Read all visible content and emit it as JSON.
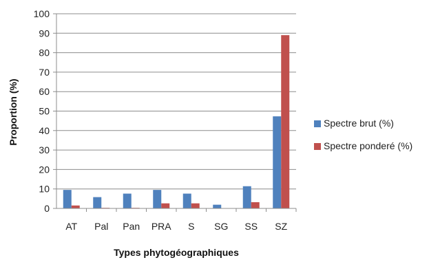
{
  "chart_data": {
    "type": "bar",
    "categories": [
      "AT",
      "Pal",
      "Pan",
      "PRA",
      "S",
      "SG",
      "SS",
      "SZ"
    ],
    "series": [
      {
        "name": "Spectre brut (%)",
        "color": "#4F81BD",
        "values": [
          9.5,
          5.8,
          7.6,
          9.5,
          7.6,
          1.9,
          11.4,
          47.3
        ]
      },
      {
        "name": "Spectre ponderé (%)",
        "color": "#C0504D",
        "values": [
          1.5,
          0.3,
          0.3,
          2.6,
          2.6,
          0,
          3.2,
          89.0
        ]
      }
    ],
    "title": "",
    "xlabel": "Types phytogéographiques",
    "ylabel": "Proportion (%)",
    "ylim": [
      0,
      100
    ],
    "yticks": [
      "0",
      "10",
      "20",
      "30",
      "40",
      "50",
      "60",
      "70",
      "80",
      "90",
      "100"
    ],
    "grid": true,
    "legend_position": "right"
  }
}
